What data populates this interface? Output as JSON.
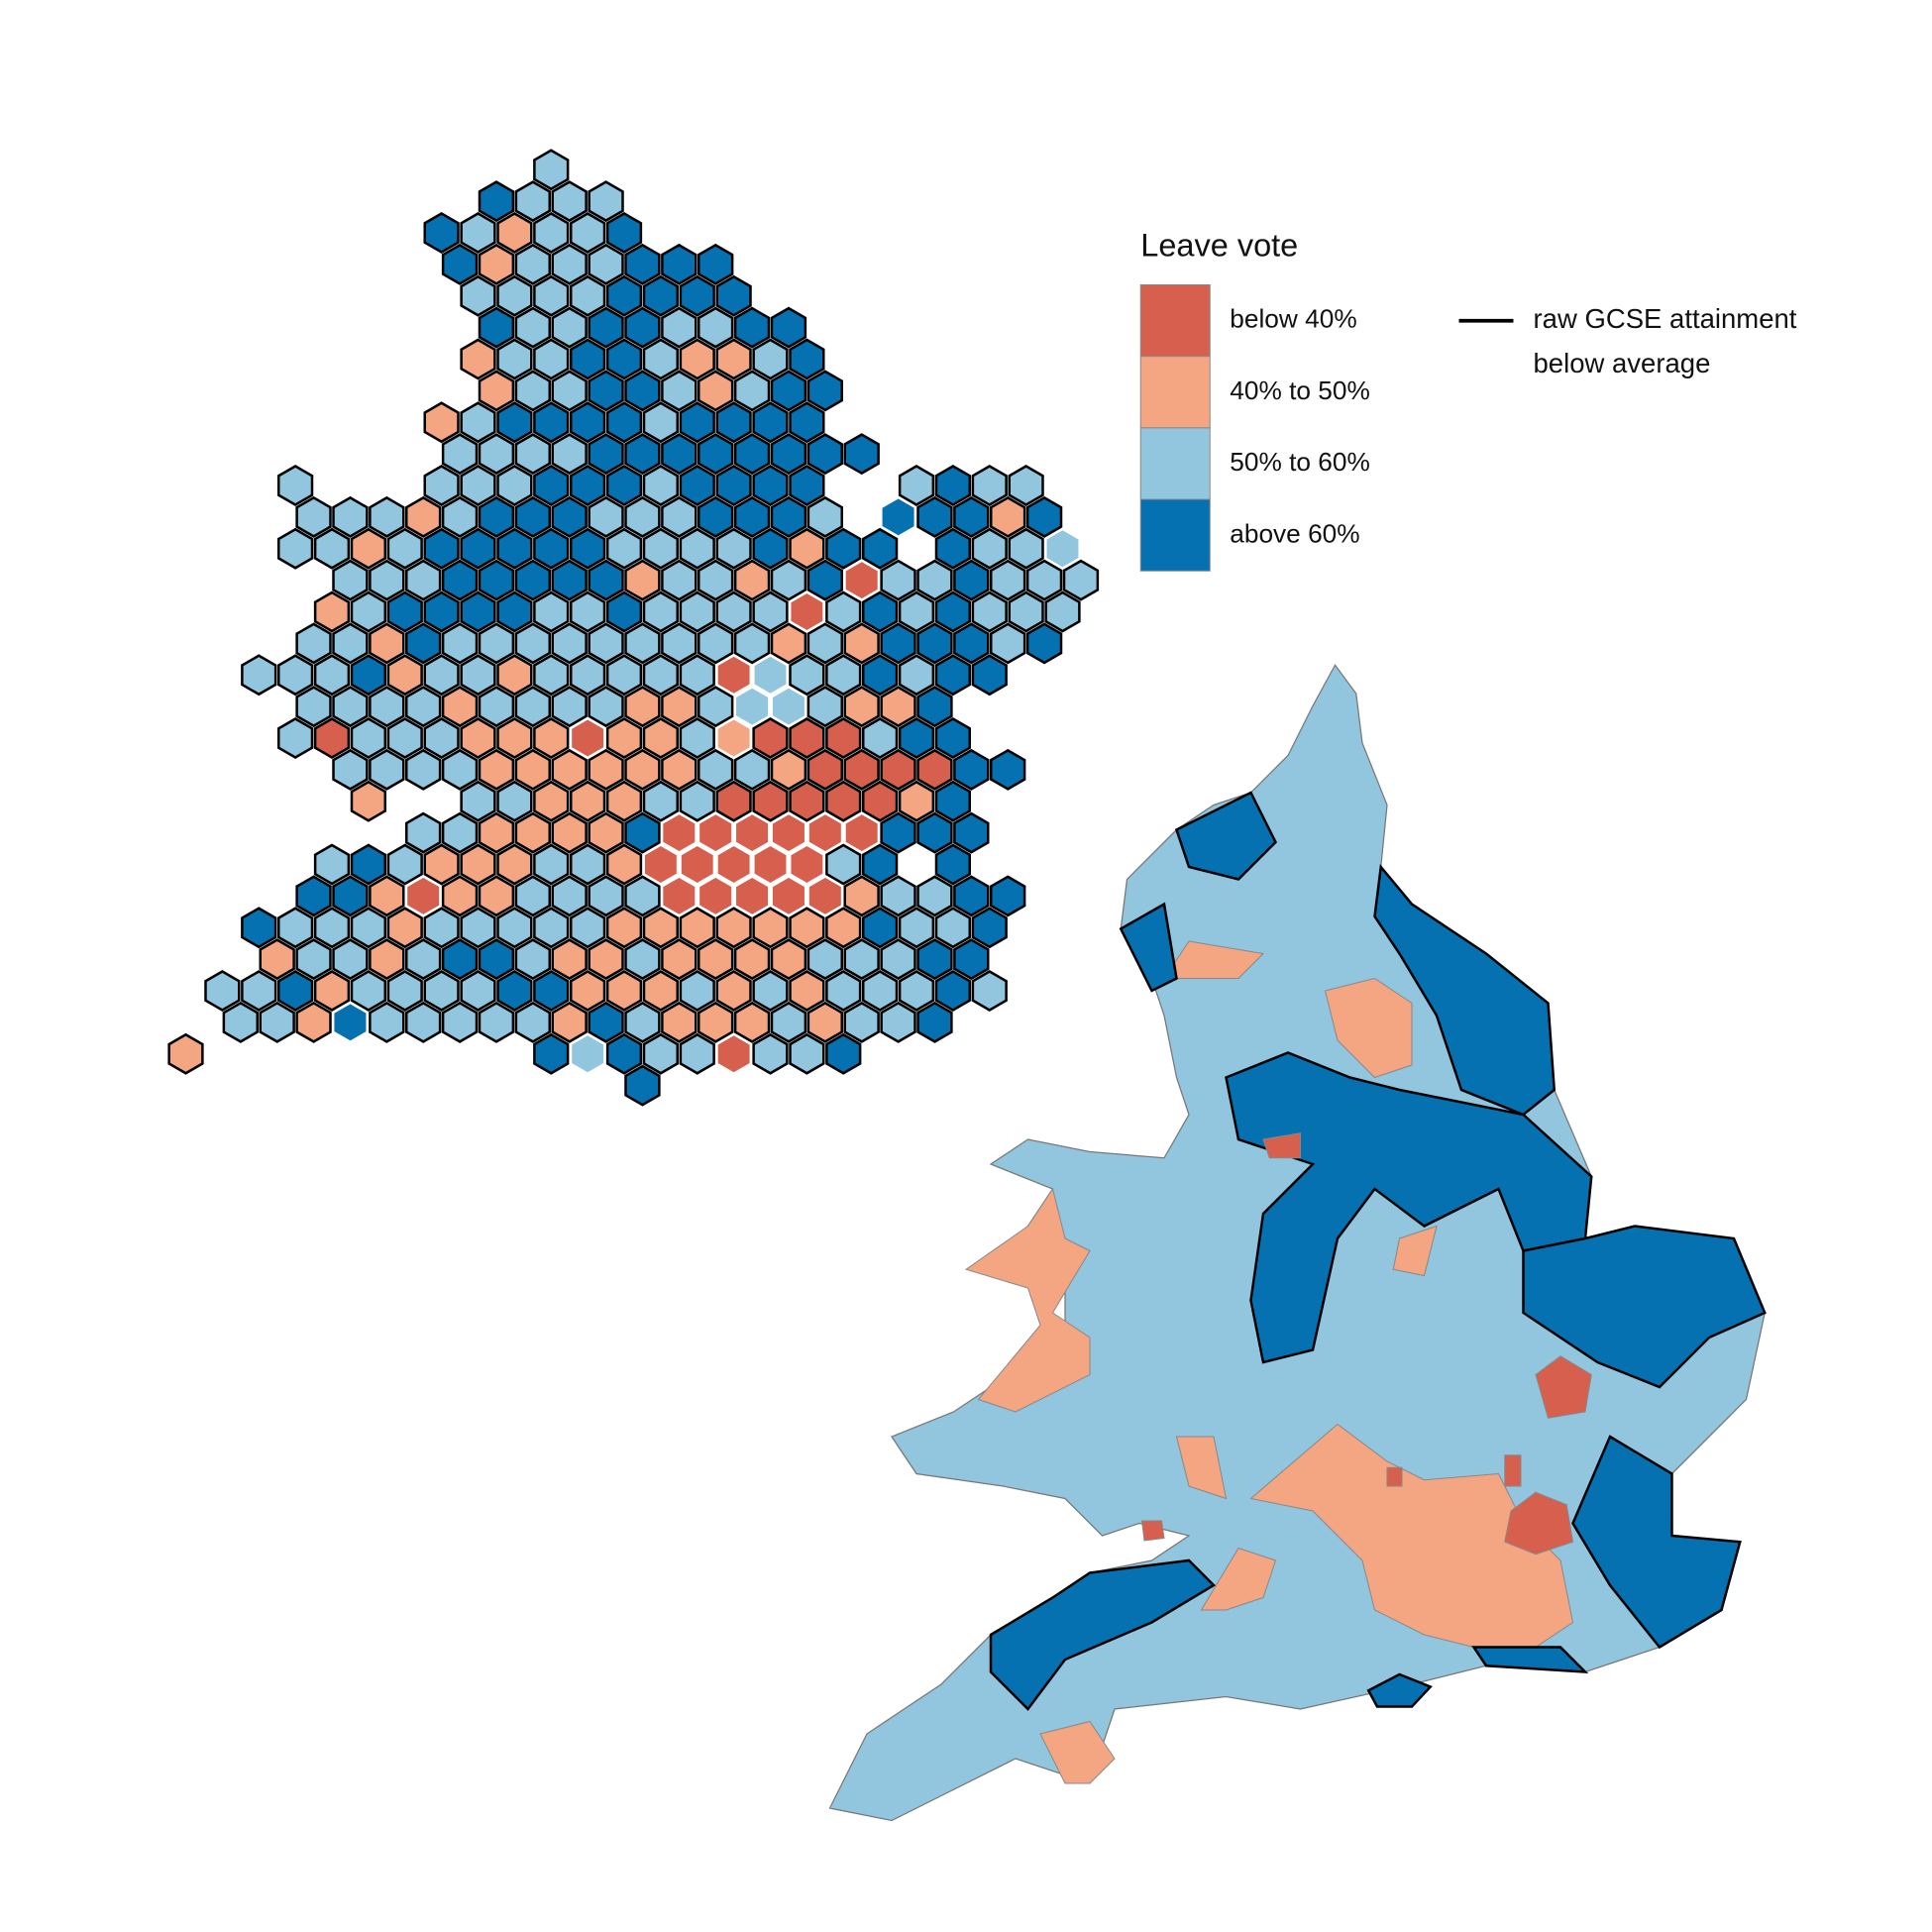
{
  "legend": {
    "title": "Leave vote",
    "items": [
      {
        "label": "below 40%",
        "color": "#d6604d"
      },
      {
        "label": "40% to 50%",
        "color": "#f4a582"
      },
      {
        "label": "50% to 60%",
        "color": "#92c5de"
      },
      {
        "label": "above 60%",
        "color": "#0571b0"
      }
    ],
    "outline_label": [
      "raw GCSE attainment",
      "below average"
    ]
  }
}
